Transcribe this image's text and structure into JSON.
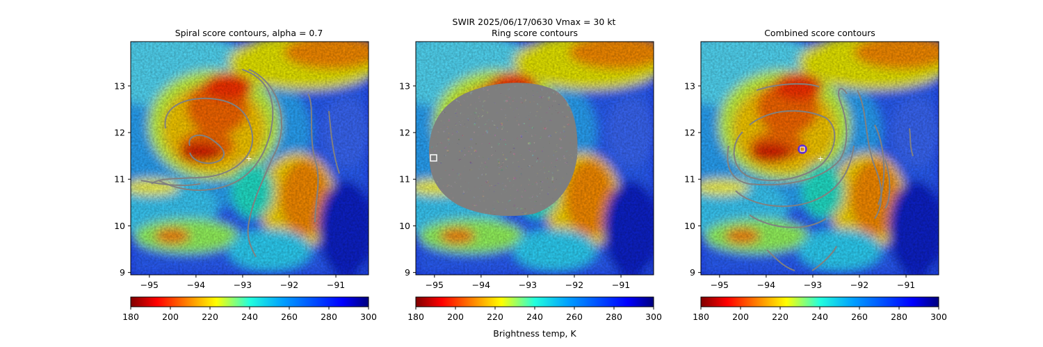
{
  "figure": {
    "suptitle_line1": "SWIR  2025/06/17/0630    Vmax = 30 kt",
    "colorbar_label": "Brightness temp, K"
  },
  "chart_data": [
    {
      "type": "heatmap",
      "title": "Spiral score contours, alpha =  0.7",
      "xlim": [
        -95.4,
        -90.3
      ],
      "ylim": [
        8.95,
        13.95
      ],
      "xticks": [
        -95,
        -94,
        -93,
        -92,
        -91
      ],
      "yticks": [
        9,
        10,
        11,
        12,
        13
      ],
      "overlay": "spiral contours",
      "center_marker": {
        "lon": -92.9,
        "lat": 11.45,
        "symbol": "+"
      },
      "colorbar": {
        "cmap": "jet_r",
        "range": [
          180,
          300
        ],
        "ticks": [
          180,
          200,
          220,
          240,
          260,
          280,
          300
        ]
      }
    },
    {
      "type": "heatmap",
      "title": "Ring score contours",
      "xlim": [
        -95.4,
        -90.3
      ],
      "ylim": [
        8.95,
        13.95
      ],
      "xticks": [
        -95,
        -94,
        -93,
        -92,
        -91
      ],
      "yticks": [
        9,
        10,
        11,
        12,
        13
      ],
      "overlay": "ring score region",
      "center_marker": {
        "lon": -95.0,
        "lat": 11.47,
        "symbol": "square"
      },
      "colorbar": {
        "cmap": "jet_r",
        "range": [
          180,
          300
        ],
        "ticks": [
          180,
          200,
          220,
          240,
          260,
          280,
          300
        ]
      }
    },
    {
      "type": "heatmap",
      "title": "Combined score contours",
      "xlim": [
        -95.4,
        -90.3
      ],
      "ylim": [
        8.95,
        13.95
      ],
      "xticks": [
        -95,
        -94,
        -93,
        -92,
        -91
      ],
      "yticks": [
        9,
        10,
        11,
        12,
        13
      ],
      "overlay": "combined contours",
      "center_marker": {
        "lon": -93.2,
        "lat": 11.65,
        "symbol": "circle"
      },
      "secondary_marker": {
        "lon": -92.9,
        "lat": 11.45,
        "symbol": "+"
      },
      "colorbar": {
        "cmap": "jet_r",
        "range": [
          180,
          300
        ],
        "ticks": [
          180,
          200,
          220,
          240,
          260,
          280,
          300
        ]
      }
    }
  ]
}
